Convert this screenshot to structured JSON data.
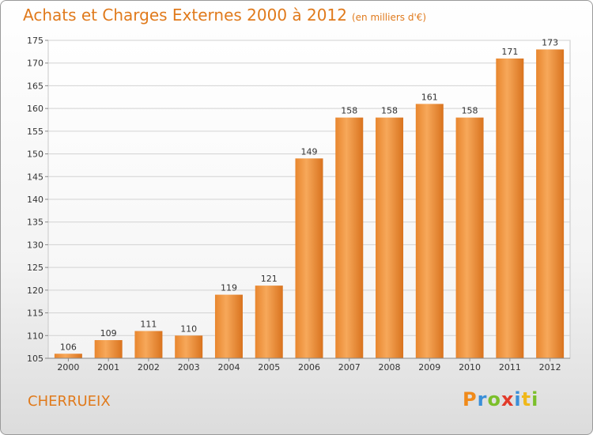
{
  "header": {
    "title": "Achats et Charges Externes 2000 à 2012",
    "subtitle": "(en milliers d'€)"
  },
  "footer": {
    "town": "CHERRUEIX",
    "logo": [
      "P",
      "r",
      "o",
      "x",
      "i",
      "t",
      "i"
    ]
  },
  "colors": {
    "accent": "#e07a1c",
    "bar_top": "#f7a85a",
    "bar_bottom": "#d9731e"
  },
  "chart_data": {
    "type": "bar",
    "title": "Achats et Charges Externes 2000 à 2012",
    "subtitle": "(en milliers d'€)",
    "xlabel": "",
    "ylabel": "",
    "categories": [
      "2000",
      "2001",
      "2002",
      "2003",
      "2004",
      "2005",
      "2006",
      "2007",
      "2008",
      "2009",
      "2010",
      "2011",
      "2012"
    ],
    "values": [
      106,
      109,
      111,
      110,
      119,
      121,
      149,
      158,
      158,
      161,
      158,
      171,
      173
    ],
    "ylim": [
      105,
      175
    ],
    "yticks": [
      105,
      110,
      115,
      120,
      125,
      130,
      135,
      140,
      145,
      150,
      155,
      160,
      165,
      170,
      175
    ],
    "grid": true
  }
}
